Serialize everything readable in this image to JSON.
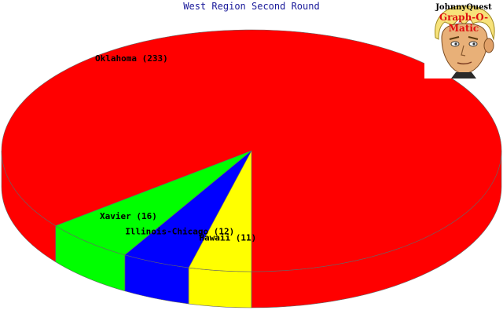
{
  "chart_data": {
    "type": "pie",
    "title": "West Region Second Round",
    "slices": [
      {
        "label": "Oklahoma (233)",
        "value": 233,
        "color": "#ff0000"
      },
      {
        "label": "Xavier (16)",
        "value": 16,
        "color": "#00ff00"
      },
      {
        "label": "Illinois-Chicago (12)",
        "value": 12,
        "color": "#0000ff"
      },
      {
        "label": "Hawaii (11)",
        "value": 11,
        "color": "#ffff00"
      }
    ],
    "style": "3d"
  },
  "logo": {
    "line1": "JohnnyQuest",
    "line2": "Graph-O-Matic"
  }
}
